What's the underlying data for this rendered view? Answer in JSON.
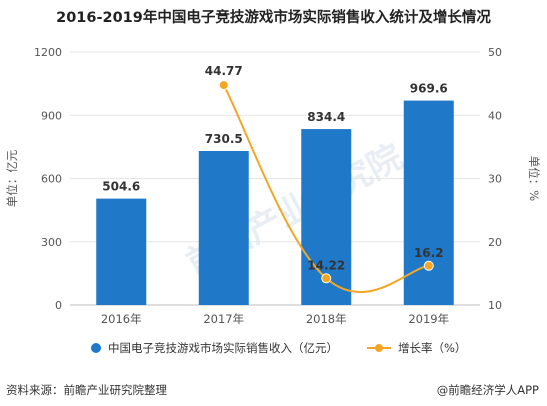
{
  "title": "2016-2019年中国电子竞技游戏市场实际销售收入统计及增长情况",
  "watermark": "前瞻产业研究院",
  "footer": {
    "source": "资料来源：前瞻产业研究院整理",
    "brand": "@前瞻经济学人APP"
  },
  "colors": {
    "bar": "#1f78c8",
    "line": "#f2a623",
    "grid": "#e6e6e6",
    "axis_text": "#555555"
  },
  "chart_data": {
    "type": "bar",
    "categories": [
      "2016年",
      "2017年",
      "2018年",
      "2019年"
    ],
    "series": [
      {
        "name": "中国电子竞技游戏市场实际销售收入（亿元）",
        "type": "bar",
        "values": [
          504.6,
          730.5,
          834.4,
          969.6
        ],
        "axis": "left"
      },
      {
        "name": "增长率（%）",
        "type": "line",
        "values": [
          null,
          44.77,
          14.22,
          16.2
        ],
        "axis": "right"
      }
    ],
    "ylabel": "单位：亿元",
    "y2label": "单位：%",
    "ylim": [
      0,
      1200
    ],
    "yticks": [
      0,
      300,
      600,
      900,
      1200
    ],
    "y2lim": [
      10,
      50
    ],
    "y2ticks": [
      10,
      20,
      30,
      40,
      50
    ],
    "bar_labels": [
      "504.6",
      "730.5",
      "834.4",
      "969.6"
    ],
    "line_labels": [
      "",
      "44.77",
      "14.22",
      "16.2"
    ],
    "legend_position": "bottom",
    "grid": true
  }
}
